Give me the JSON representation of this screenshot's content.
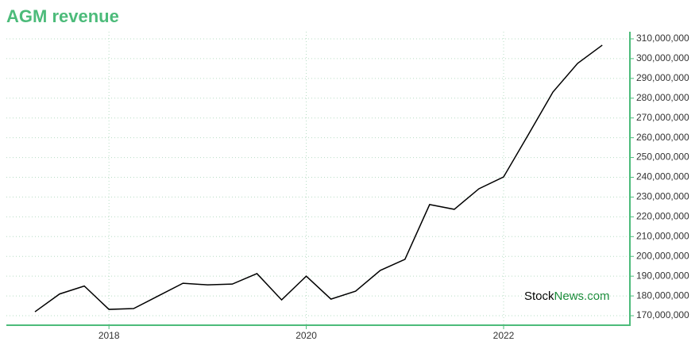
{
  "chart_data": {
    "type": "line",
    "title": "AGM revenue",
    "x": [
      2017.25,
      2017.5,
      2017.75,
      2018,
      2018.25,
      2018.5,
      2018.75,
      2019,
      2019.25,
      2019.5,
      2019.75,
      2020,
      2020.25,
      2020.5,
      2020.75,
      2021,
      2021.25,
      2021.5,
      2021.75,
      2022,
      2022.25,
      2022.5,
      2022.75,
      2023
    ],
    "series": [
      {
        "color": "#000000",
        "values": [
          172000000,
          181000000,
          185000000,
          173200000,
          173600000,
          180000000,
          186400000,
          185600000,
          186000000,
          191300000,
          178000000,
          190000000,
          178400000,
          182400000,
          192900000,
          198500000,
          226200000,
          223800000,
          234200000,
          240200000,
          261500000,
          283100000,
          297600000,
          306800000
        ]
      }
    ],
    "xlim": [
      2016.96,
      2023.28
    ],
    "xticks": [
      2018,
      2020,
      2022
    ],
    "ylim": [
      165200000,
      313600000
    ],
    "yticks": [
      {
        "value": 170000000,
        "label": "170,000,000"
      },
      {
        "value": 180000000,
        "label": "180,000,000"
      },
      {
        "value": 190000000,
        "label": "190,000,000"
      },
      {
        "value": 200000000,
        "label": "200,000,000"
      },
      {
        "value": 210000000,
        "label": "210,000,000"
      },
      {
        "value": 220000000,
        "label": "220,000,000"
      },
      {
        "value": 230000000,
        "label": "230,000,000"
      },
      {
        "value": 240000000,
        "label": "240,000,000"
      },
      {
        "value": 250000000,
        "label": "250,000,000"
      },
      {
        "value": 260000000,
        "label": "260,000,000"
      },
      {
        "value": 270000000,
        "label": "270,000,000"
      },
      {
        "value": 280000000,
        "label": "280,000,000"
      },
      {
        "value": 290000000,
        "label": "290,000,000"
      },
      {
        "value": 300000000,
        "label": "300,000,000"
      },
      {
        "value": 310000000,
        "label": "310,000,000"
      }
    ],
    "grid": true,
    "axis_color": "#4cbb7a",
    "watermark": {
      "part1": "Stock",
      "part2": "News.com"
    }
  }
}
